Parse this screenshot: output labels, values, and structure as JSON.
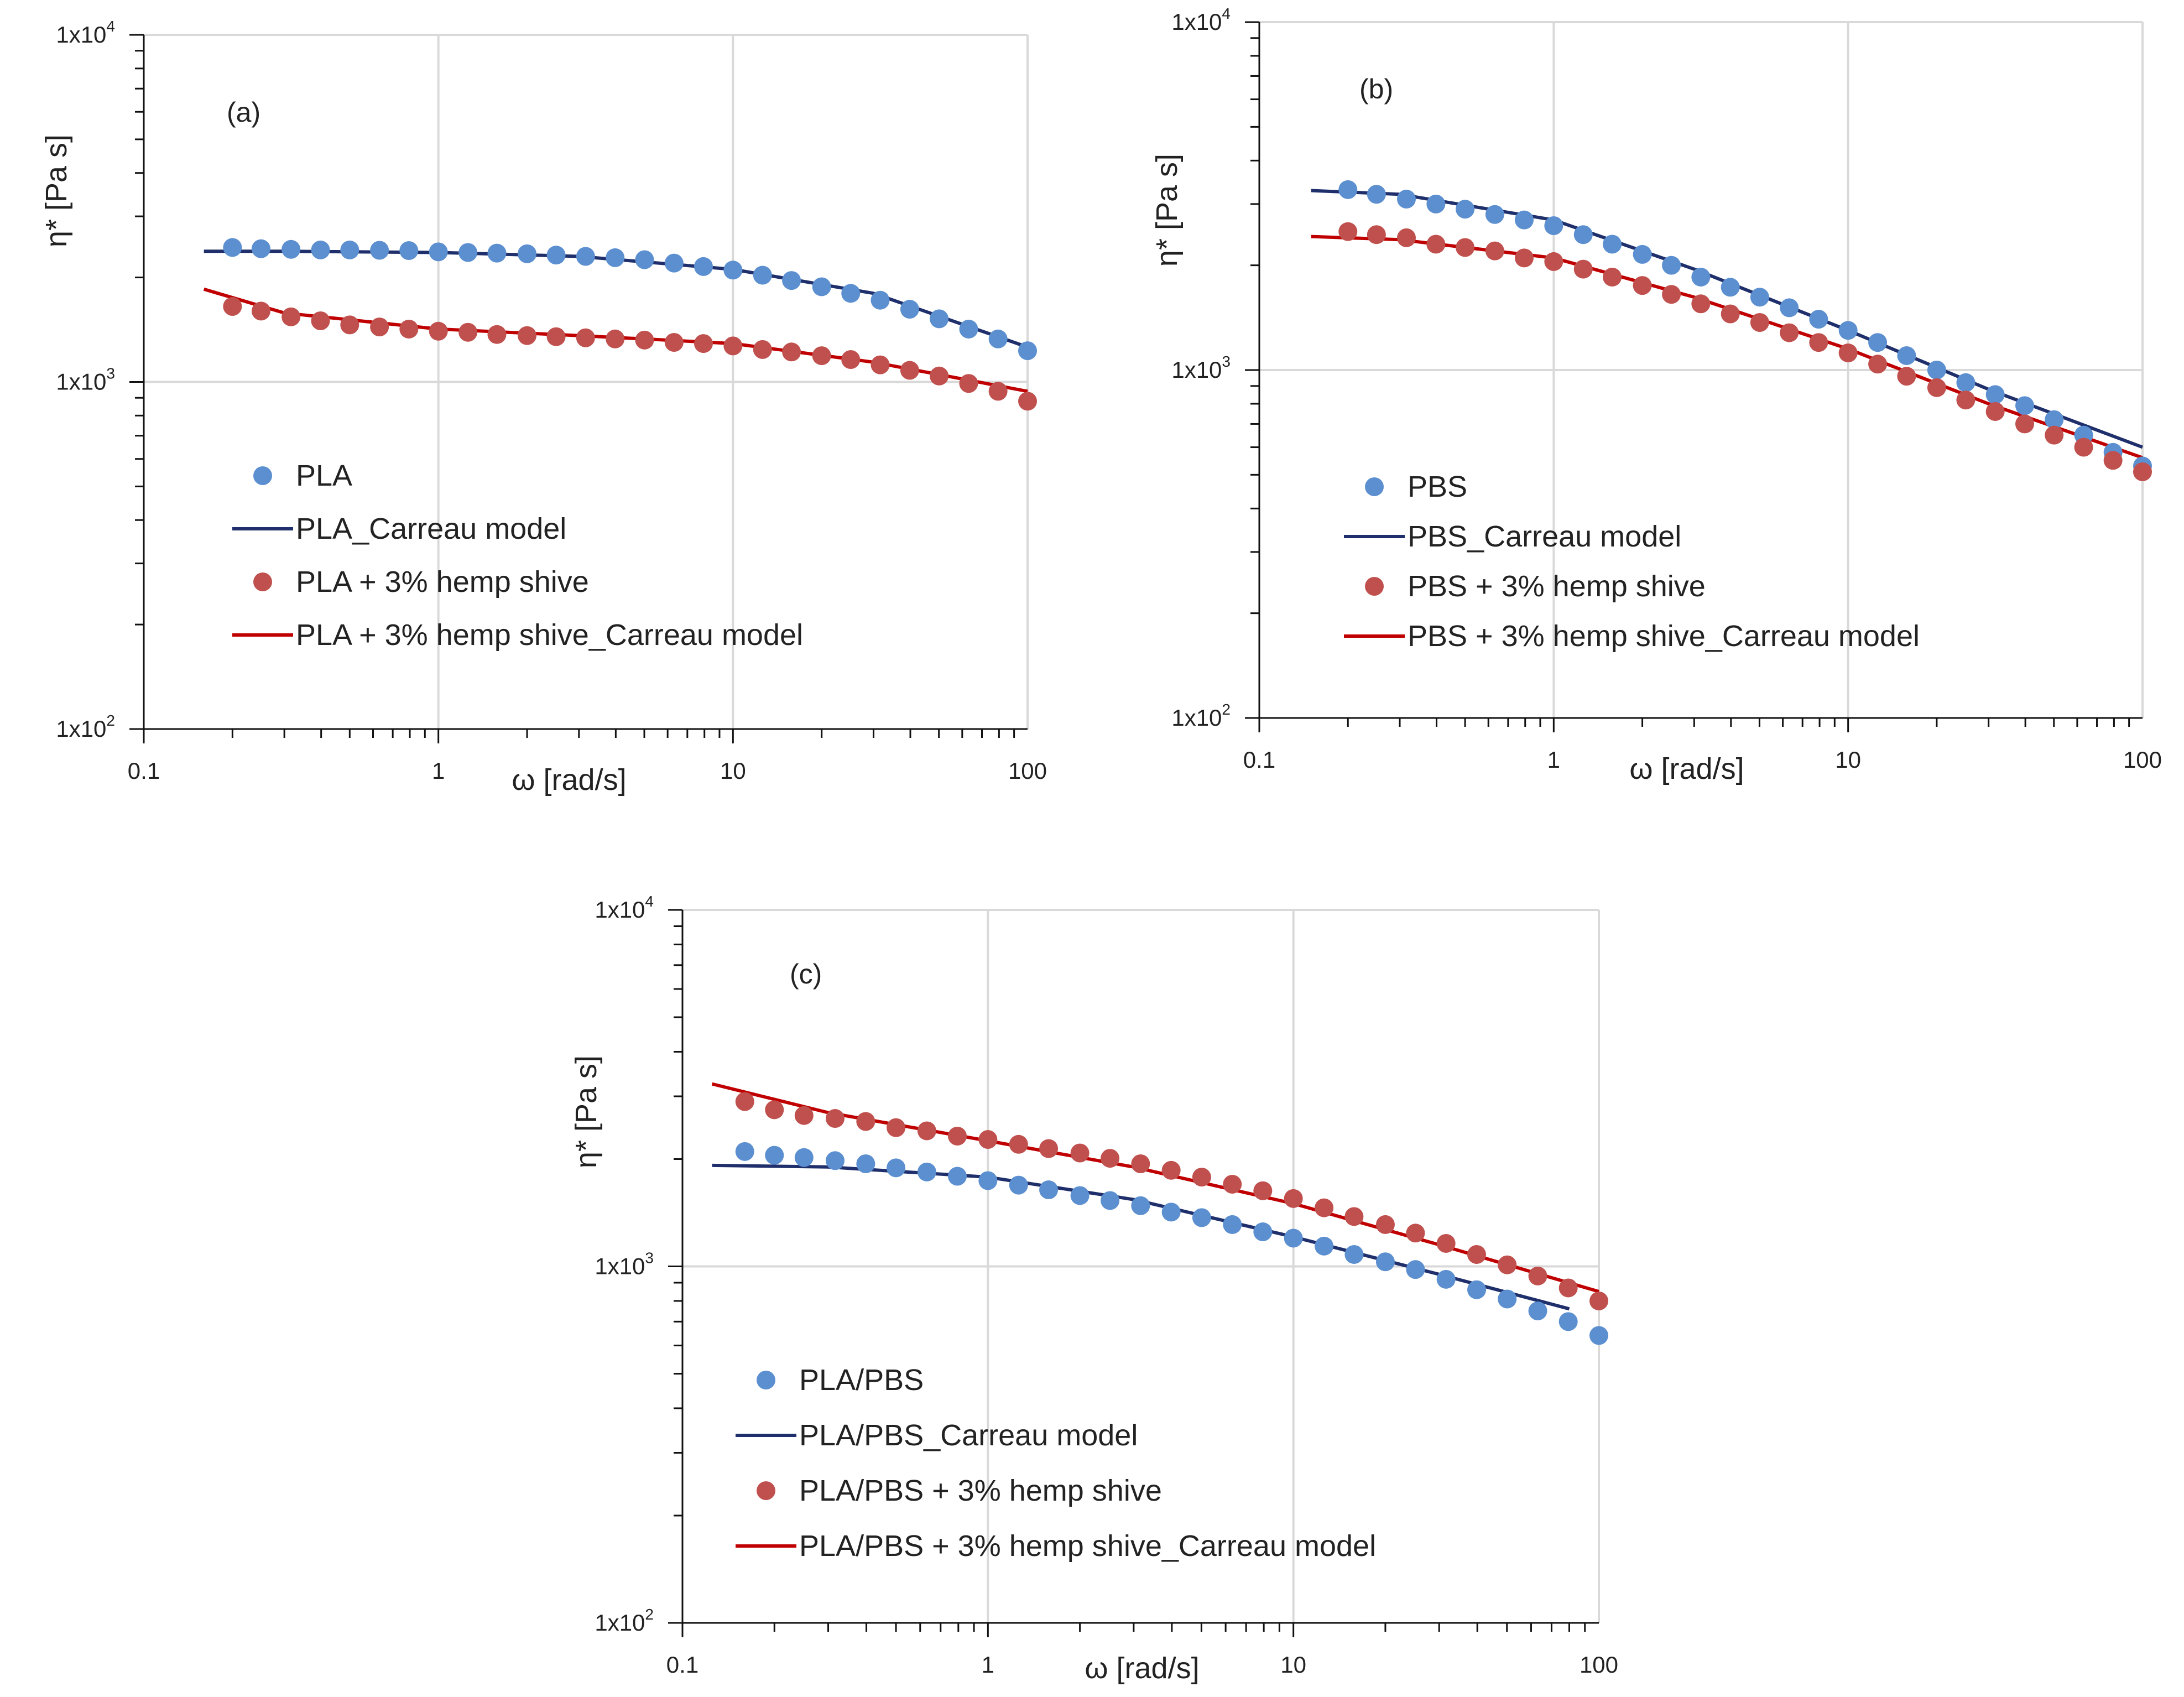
{
  "chart_data": [
    {
      "type": "line",
      "panel_label": "(a)",
      "xscale": "log",
      "yscale": "log",
      "xlim": [
        0.1,
        100
      ],
      "ylim": [
        100,
        10000
      ],
      "xlabel": "ω [rad/s]",
      "ylabel": "η* [Pa s]",
      "xticks": [
        "0.1",
        "1",
        "10",
        "100"
      ],
      "yticks": [
        {
          "base": "1x10",
          "exp": "2"
        },
        {
          "base": "1x10",
          "exp": "3"
        },
        {
          "base": "1x10",
          "exp": "4"
        }
      ],
      "grid": true,
      "legend_position": "center-left",
      "series": [
        {
          "name": "PLA",
          "kind": "markers",
          "color": "#5B8FD0",
          "x": [
            0.2,
            0.25,
            0.316,
            0.398,
            0.5,
            0.631,
            0.794,
            1,
            1.26,
            1.58,
            2,
            2.51,
            3.16,
            3.98,
            5.01,
            6.31,
            7.94,
            10,
            12.6,
            15.8,
            20,
            25.1,
            31.6,
            39.8,
            50.1,
            63.1,
            79.4,
            100
          ],
          "y": [
            2440,
            2420,
            2410,
            2400,
            2400,
            2395,
            2390,
            2370,
            2360,
            2350,
            2340,
            2320,
            2300,
            2280,
            2250,
            2200,
            2150,
            2100,
            2030,
            1960,
            1880,
            1800,
            1720,
            1620,
            1520,
            1420,
            1330,
            1230
          ]
        },
        {
          "name": "PLA_Carreau model",
          "kind": "line",
          "color": "#1F2F6B",
          "x": [
            0.16,
            0.3,
            1,
            3,
            10,
            30,
            100
          ],
          "y": [
            2380,
            2380,
            2360,
            2300,
            2110,
            1800,
            1260
          ]
        },
        {
          "name": "PLA + 3% hemp shive",
          "kind": "markers",
          "color": "#C0504D",
          "x": [
            0.2,
            0.25,
            0.316,
            0.398,
            0.5,
            0.631,
            0.794,
            1,
            1.26,
            1.58,
            2,
            2.51,
            3.16,
            3.98,
            5.01,
            6.31,
            7.94,
            10,
            12.6,
            15.8,
            20,
            25.1,
            31.6,
            39.8,
            50.1,
            63.1,
            79.4,
            100
          ],
          "y": [
            1650,
            1600,
            1540,
            1500,
            1460,
            1440,
            1420,
            1400,
            1390,
            1370,
            1360,
            1350,
            1340,
            1330,
            1320,
            1300,
            1290,
            1270,
            1240,
            1220,
            1190,
            1160,
            1120,
            1080,
            1040,
            990,
            940,
            880
          ]
        },
        {
          "name": "PLA + 3% hemp shive_Carreau model",
          "kind": "line",
          "color": "#C00000",
          "x": [
            0.16,
            0.3,
            1,
            3,
            10,
            30,
            100
          ],
          "y": [
            1850,
            1580,
            1420,
            1360,
            1290,
            1140,
            940
          ]
        }
      ]
    },
    {
      "type": "line",
      "panel_label": "(b)",
      "xscale": "log",
      "yscale": "log",
      "xlim": [
        0.1,
        100
      ],
      "ylim": [
        100,
        10000
      ],
      "xlabel": "ω [rad/s]",
      "ylabel": "η* [Pa s]",
      "xticks": [
        "0.1",
        "1",
        "10",
        "100"
      ],
      "yticks": [
        {
          "base": "1x10",
          "exp": "2"
        },
        {
          "base": "1x10",
          "exp": "3"
        },
        {
          "base": "1x10",
          "exp": "4"
        }
      ],
      "grid": true,
      "legend_position": "center-left",
      "series": [
        {
          "name": "PBS",
          "kind": "markers",
          "color": "#5B8FD0",
          "x": [
            0.2,
            0.25,
            0.316,
            0.398,
            0.5,
            0.631,
            0.794,
            1,
            1.26,
            1.58,
            2,
            2.51,
            3.16,
            3.98,
            5.01,
            6.31,
            7.94,
            10,
            12.6,
            15.8,
            20,
            25.1,
            31.6,
            39.8,
            50.1,
            63.1,
            79.4,
            100
          ],
          "y": [
            3300,
            3200,
            3100,
            3000,
            2900,
            2800,
            2700,
            2600,
            2450,
            2300,
            2150,
            2000,
            1850,
            1730,
            1620,
            1510,
            1400,
            1300,
            1200,
            1100,
            1000,
            920,
            850,
            790,
            720,
            650,
            580,
            530
          ]
        },
        {
          "name": "PBS_Carreau model",
          "kind": "line",
          "color": "#1F2F6B",
          "x": [
            0.15,
            0.3,
            1,
            3,
            10,
            30,
            100
          ],
          "y": [
            3280,
            3200,
            2700,
            1950,
            1300,
            880,
            600
          ]
        },
        {
          "name": "PBS + 3% hemp shive",
          "kind": "markers",
          "color": "#C0504D",
          "x": [
            0.2,
            0.25,
            0.316,
            0.398,
            0.5,
            0.631,
            0.794,
            1,
            1.26,
            1.58,
            2,
            2.51,
            3.16,
            3.98,
            5.01,
            6.31,
            7.94,
            10,
            12.6,
            15.8,
            20,
            25.1,
            31.6,
            39.8,
            50.1,
            63.1,
            79.4,
            100
          ],
          "y": [
            2500,
            2450,
            2400,
            2300,
            2250,
            2200,
            2100,
            2050,
            1950,
            1850,
            1750,
            1650,
            1550,
            1450,
            1370,
            1280,
            1200,
            1120,
            1040,
            960,
            890,
            820,
            760,
            700,
            650,
            600,
            550,
            510
          ]
        },
        {
          "name": "PBS + 3% hemp shive_Carreau model",
          "kind": "line",
          "color": "#C00000",
          "x": [
            0.15,
            0.3,
            1,
            3,
            10,
            30,
            100
          ],
          "y": [
            2420,
            2370,
            2100,
            1620,
            1150,
            800,
            560
          ]
        }
      ]
    },
    {
      "type": "line",
      "panel_label": "(c)",
      "xscale": "log",
      "yscale": "log",
      "xlim": [
        0.1,
        100
      ],
      "ylim": [
        100,
        10000
      ],
      "xlabel": "ω [rad/s]",
      "ylabel": "η* [Pa s]",
      "xticks": [
        "0.1",
        "1",
        "10",
        "100"
      ],
      "yticks": [
        {
          "base": "1x10",
          "exp": "2"
        },
        {
          "base": "1x10",
          "exp": "3"
        },
        {
          "base": "1x10",
          "exp": "4"
        }
      ],
      "grid": true,
      "legend_position": "bottom-left",
      "series": [
        {
          "name": "PLA/PBS",
          "kind": "markers",
          "color": "#5B8FD0",
          "x": [
            0.16,
            0.2,
            0.25,
            0.316,
            0.398,
            0.5,
            0.631,
            0.794,
            1,
            1.26,
            1.58,
            2,
            2.51,
            3.16,
            3.98,
            5.01,
            6.31,
            7.94,
            10,
            12.6,
            15.8,
            20,
            25.1,
            31.6,
            39.8,
            50.1,
            63.1,
            79.4,
            100
          ],
          "y": [
            2100,
            2050,
            2020,
            1980,
            1940,
            1890,
            1840,
            1790,
            1740,
            1690,
            1640,
            1580,
            1530,
            1480,
            1420,
            1370,
            1310,
            1250,
            1200,
            1140,
            1080,
            1030,
            980,
            920,
            860,
            810,
            750,
            700,
            640
          ]
        },
        {
          "name": "PLA/PBS_Carreau model",
          "kind": "line",
          "color": "#1F2F6B",
          "x": [
            0.125,
            0.3,
            1,
            3,
            10,
            30,
            80
          ],
          "y": [
            1920,
            1900,
            1780,
            1540,
            1210,
            950,
            760
          ]
        },
        {
          "name": "PLA/PBS + 3% hemp shive",
          "kind": "markers",
          "color": "#C0504D",
          "x": [
            0.16,
            0.2,
            0.25,
            0.316,
            0.398,
            0.5,
            0.631,
            0.794,
            1,
            1.26,
            1.58,
            2,
            2.51,
            3.16,
            3.98,
            5.01,
            6.31,
            7.94,
            10,
            12.6,
            15.8,
            20,
            25.1,
            31.6,
            39.8,
            50.1,
            63.1,
            79.4,
            100
          ],
          "y": [
            2900,
            2750,
            2650,
            2600,
            2550,
            2450,
            2400,
            2320,
            2270,
            2200,
            2140,
            2080,
            2010,
            1940,
            1860,
            1780,
            1700,
            1630,
            1550,
            1460,
            1380,
            1310,
            1240,
            1160,
            1080,
            1010,
            940,
            870,
            800
          ]
        },
        {
          "name": "PLA/PBS + 3% hemp shive_Carreau model",
          "kind": "line",
          "color": "#C00000",
          "x": [
            0.125,
            0.3,
            1,
            3,
            10,
            30,
            100
          ],
          "y": [
            3250,
            2700,
            2250,
            1900,
            1500,
            1150,
            850
          ]
        }
      ]
    }
  ]
}
